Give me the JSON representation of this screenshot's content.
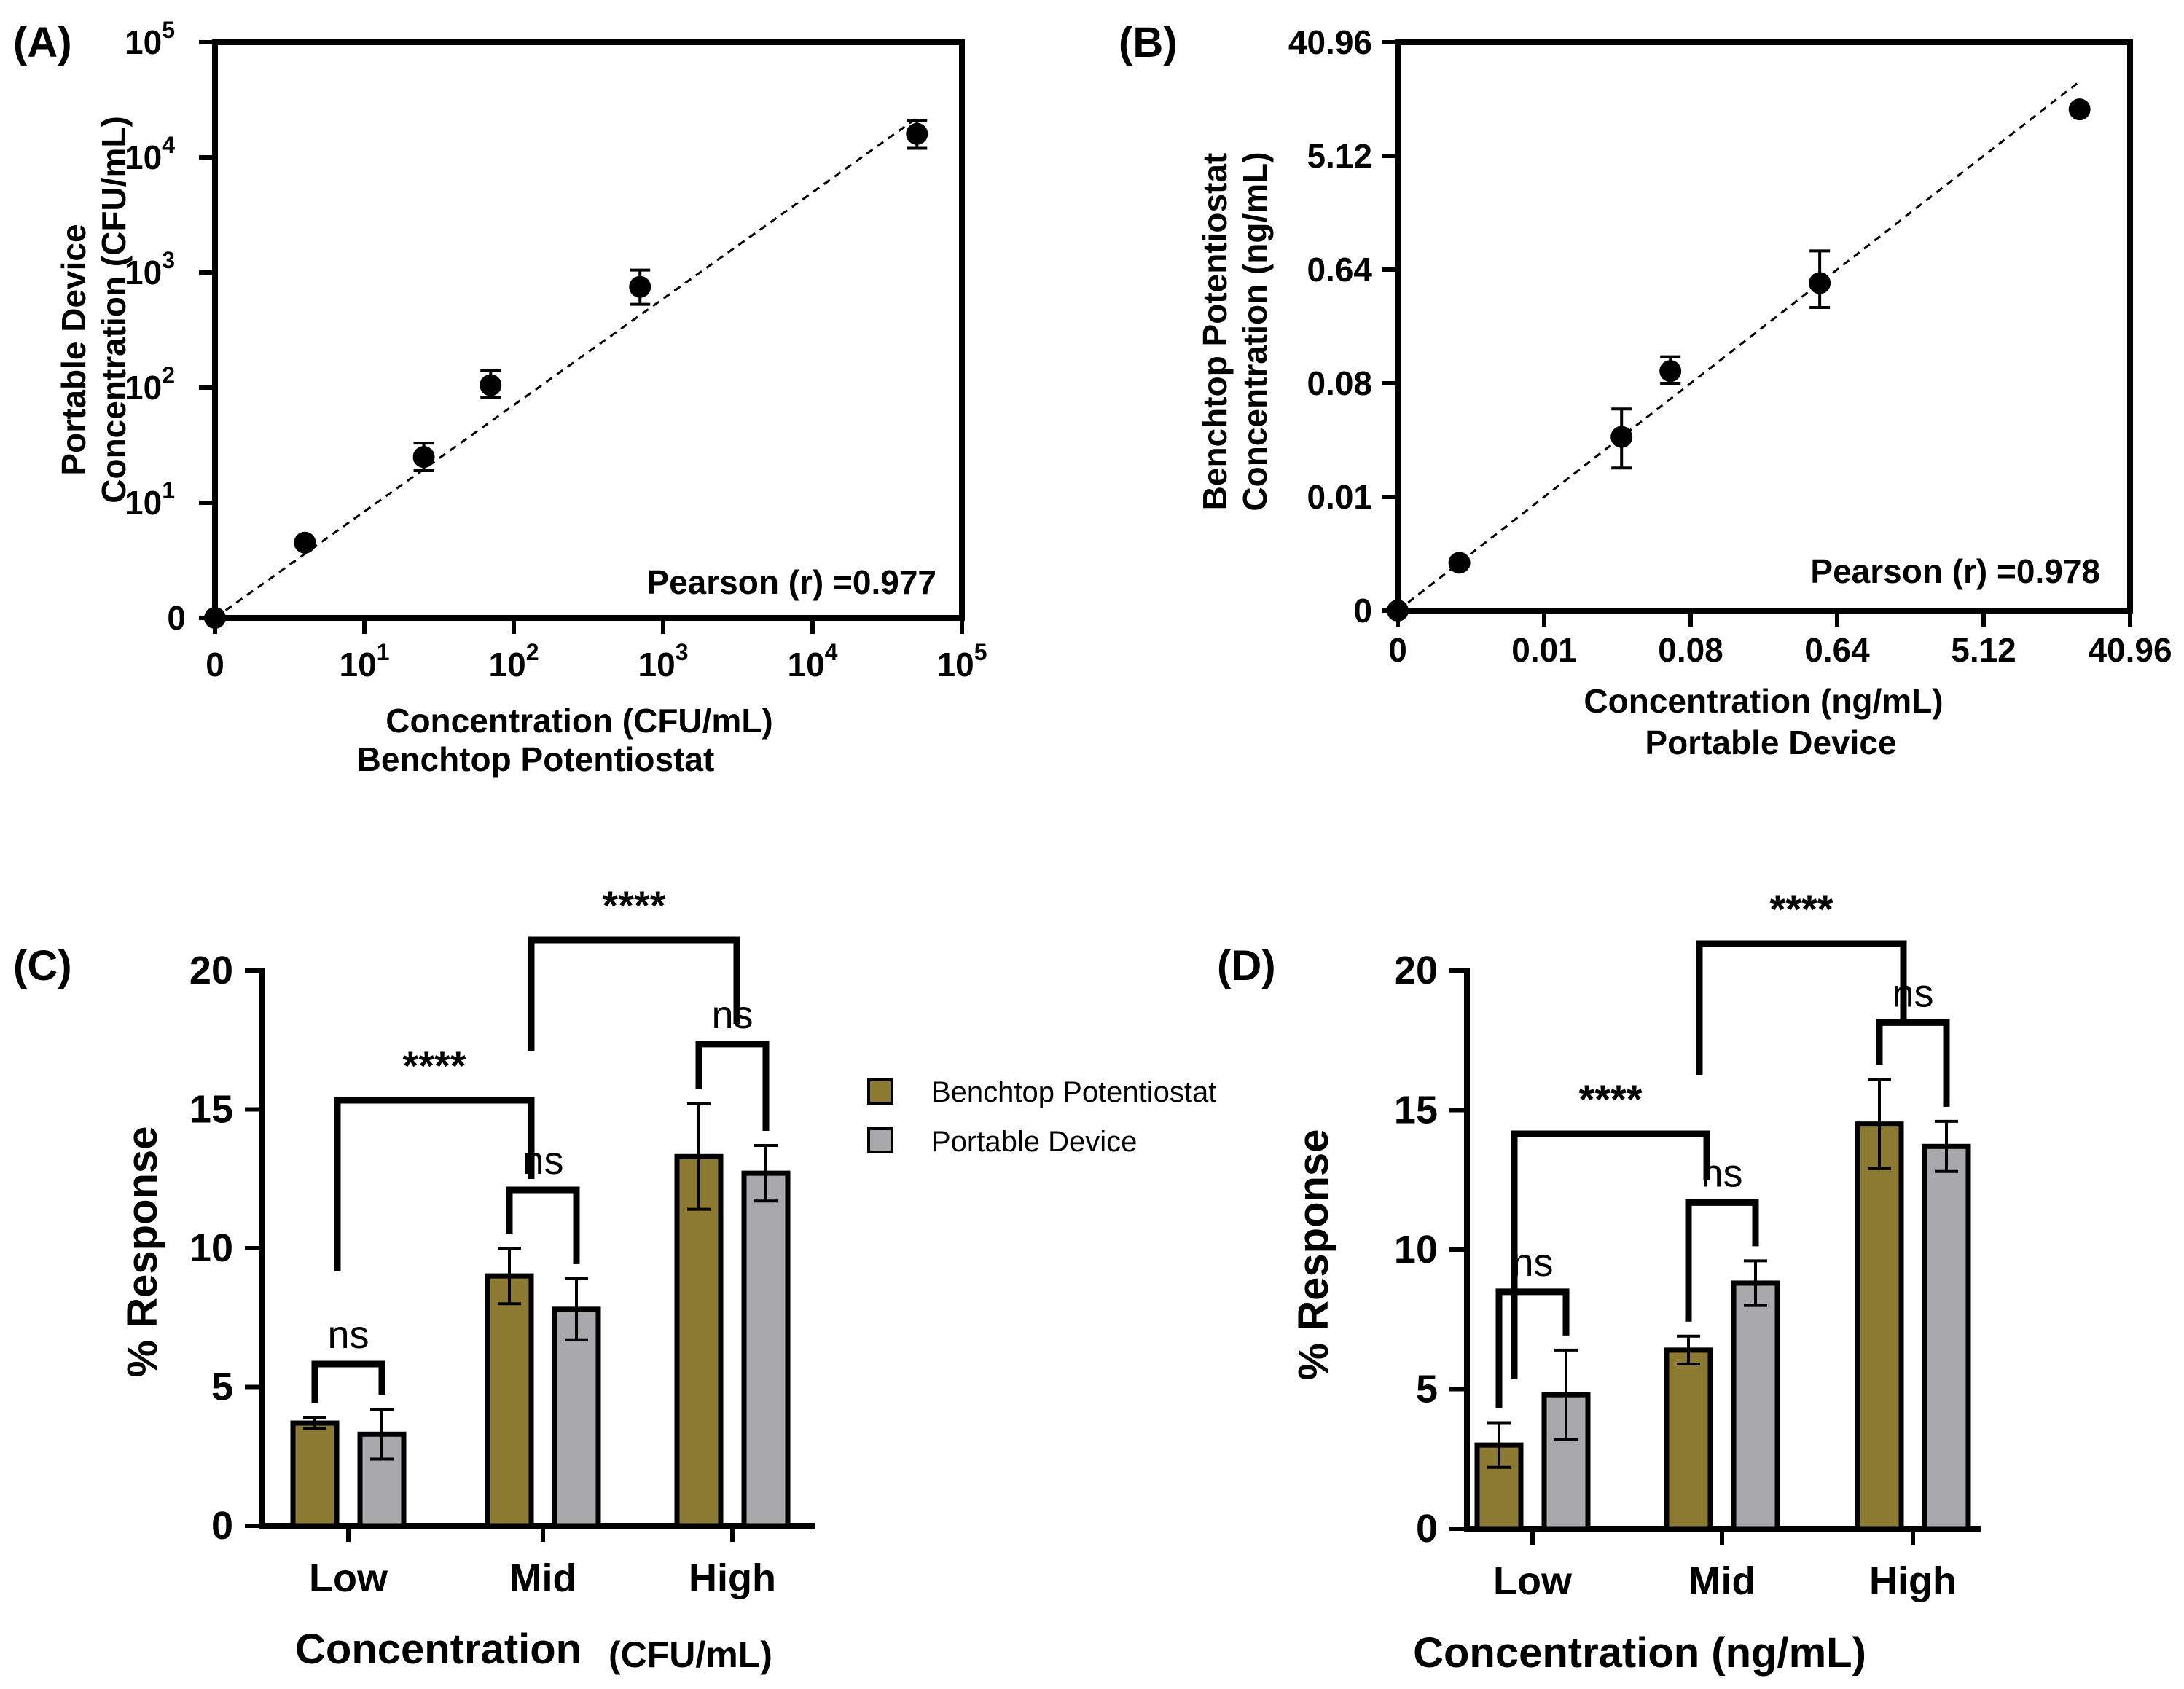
{
  "colors": {
    "benchtop": "#8c7a33",
    "portable": "#a9a9ab",
    "axis": "#000000"
  },
  "chart_data": [
    {
      "panel": "(A)",
      "type": "scatter",
      "xscale": "log",
      "yscale": "log",
      "xlabel": "Concentration (CFU/mL)",
      "xlabel2": "Benchtop Potentiostat",
      "ylabel": "Portable Device",
      "ylabel2": "Concentration (CFU/mL)",
      "xticks": [
        {
          "base": "0",
          "exp": ""
        },
        {
          "base": "10",
          "exp": "1"
        },
        {
          "base": "10",
          "exp": "2"
        },
        {
          "base": "10",
          "exp": "3"
        },
        {
          "base": "10",
          "exp": "4"
        },
        {
          "base": "10",
          "exp": "5"
        }
      ],
      "yticks": [
        {
          "base": "0",
          "exp": ""
        },
        {
          "base": "10",
          "exp": "1"
        },
        {
          "base": "10",
          "exp": "2"
        },
        {
          "base": "10",
          "exp": "3"
        },
        {
          "base": "10",
          "exp": "4"
        },
        {
          "base": "10",
          "exp": "5"
        }
      ],
      "points": [
        {
          "x": 0,
          "y": 0,
          "err_low": 0,
          "err_high": 0
        },
        {
          "x": 4,
          "y": 4.5,
          "err_low": 4.2,
          "err_high": 4.8
        },
        {
          "x": 25,
          "y": 25,
          "err_low": 19,
          "err_high": 33
        },
        {
          "x": 70,
          "y": 105,
          "err_low": 82,
          "err_high": 140
        },
        {
          "x": 700,
          "y": 750,
          "err_low": 530,
          "err_high": 1050
        },
        {
          "x": 50000,
          "y": 16000,
          "err_low": 12000,
          "err_high": 21000
        }
      ],
      "fit": {
        "x0": 0,
        "y0": 0,
        "x1": 50000,
        "y1": 22000
      },
      "annotation": "Pearson (r) =0.977"
    },
    {
      "panel": "(B)",
      "type": "scatter",
      "xscale": "log2",
      "yscale": "log2",
      "xlabel": "Concentration (ng/mL)",
      "xlabel2": "Portable Device",
      "ylabel": "Benchtop Potentiostat",
      "ylabel2": "Concentration (ng/mL)",
      "xticks": [
        "0",
        "0.01",
        "0.08",
        "0.64",
        "5.12",
        "40.96"
      ],
      "yticks": [
        "0",
        "0.01",
        "0.08",
        "0.64",
        "5.12",
        "40.96"
      ],
      "points": [
        {
          "x": 0,
          "y": 0,
          "err_low": 0,
          "err_high": 0
        },
        {
          "x": 0.003,
          "y": 0.003,
          "err_low": 0.0028,
          "err_high": 0.0032
        },
        {
          "x": 0.03,
          "y": 0.03,
          "err_low": 0.017,
          "err_high": 0.05
        },
        {
          "x": 0.06,
          "y": 0.1,
          "err_low": 0.08,
          "err_high": 0.13
        },
        {
          "x": 0.5,
          "y": 0.5,
          "err_low": 0.32,
          "err_high": 0.9
        },
        {
          "x": 20,
          "y": 12,
          "err_low": 12,
          "err_high": 12
        }
      ],
      "fit": {
        "x0": 0,
        "y0": 0,
        "x1": 20,
        "y1": 20
      },
      "annotation": "Pearson (r) =0.978"
    },
    {
      "panel": "(C)",
      "type": "bar",
      "xlabel": "Concentration",
      "xlabel_unit": "(CFU/mL)",
      "ylabel": "% Response",
      "ylim": [
        0,
        20
      ],
      "yticks": [
        "0",
        "5",
        "10",
        "15",
        "20"
      ],
      "categories": [
        "Low",
        "Mid",
        "High"
      ],
      "series": [
        {
          "name": "Benchtop Potentiostat",
          "values": [
            3.7,
            9.0,
            13.3
          ],
          "errors": [
            0.2,
            1.0,
            1.9
          ]
        },
        {
          "name": "Portable Device",
          "values": [
            3.3,
            7.8,
            12.7
          ],
          "errors": [
            0.9,
            1.1,
            1.0
          ]
        }
      ],
      "significance": [
        {
          "label": "ns",
          "between": "Low"
        },
        {
          "label": "ns",
          "between": "Mid"
        },
        {
          "label": "ns",
          "between": "High"
        },
        {
          "label": "****",
          "between": "Low-Mid"
        },
        {
          "label": "****",
          "between": "Mid-High"
        }
      ]
    },
    {
      "panel": "(D)",
      "type": "bar",
      "xlabel": "Concentration (ng/mL)",
      "ylabel": "% Response",
      "ylim": [
        0,
        20
      ],
      "yticks": [
        "0",
        "5",
        "10",
        "15",
        "20"
      ],
      "categories": [
        "Low",
        "Mid",
        "High"
      ],
      "series": [
        {
          "name": "Benchtop Potentiostat",
          "values": [
            3.0,
            6.4,
            14.5
          ],
          "errors": [
            0.8,
            0.5,
            1.6
          ]
        },
        {
          "name": "Portable Device",
          "values": [
            4.8,
            8.8,
            13.7
          ],
          "errors": [
            1.6,
            0.8,
            0.9
          ]
        }
      ],
      "significance": [
        {
          "label": "ns",
          "between": "Low"
        },
        {
          "label": "ns",
          "between": "Mid"
        },
        {
          "label": "ns",
          "between": "High"
        },
        {
          "label": "****",
          "between": "Low-Mid"
        },
        {
          "label": "****",
          "between": "Mid-High"
        }
      ]
    }
  ],
  "legend": {
    "items": [
      "Benchtop Potentiostat",
      "Portable Device"
    ]
  }
}
